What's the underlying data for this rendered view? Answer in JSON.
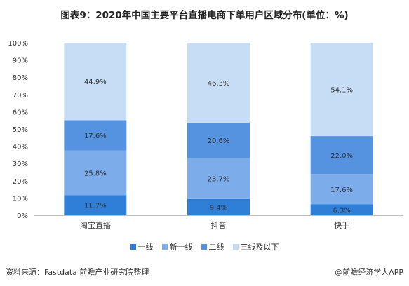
{
  "title": "图表9：2020年中国主要平台直播电商下单用户区域分布(单位：%)",
  "source": "资料来源：Fastdata 前瞻产业研究院整理",
  "brand": "@前瞻经济学人APP",
  "colors": {
    "series": [
      "#2f7ed8",
      "#7cacea",
      "#5593e0",
      "#c7ddf6"
    ],
    "axis": "#bfbfbf",
    "label": "#333333"
  },
  "chart_data": {
    "type": "bar",
    "stacked": true,
    "percent": true,
    "categories": [
      "淘宝直播",
      "抖音",
      "快手"
    ],
    "series": [
      {
        "name": "一线",
        "values": [
          11.7,
          9.4,
          6.3
        ]
      },
      {
        "name": "新一线",
        "values": [
          25.8,
          23.7,
          17.6
        ]
      },
      {
        "name": "二线",
        "values": [
          17.6,
          20.6,
          22.0
        ]
      },
      {
        "name": "三线及以下",
        "values": [
          44.9,
          46.3,
          54.1
        ]
      }
    ],
    "ylim": [
      0,
      100
    ],
    "yticks": [
      "0%",
      "10%",
      "20%",
      "30%",
      "40%",
      "50%",
      "60%",
      "70%",
      "80%",
      "90%",
      "100%"
    ],
    "legend_position": "bottom",
    "grid": false
  }
}
